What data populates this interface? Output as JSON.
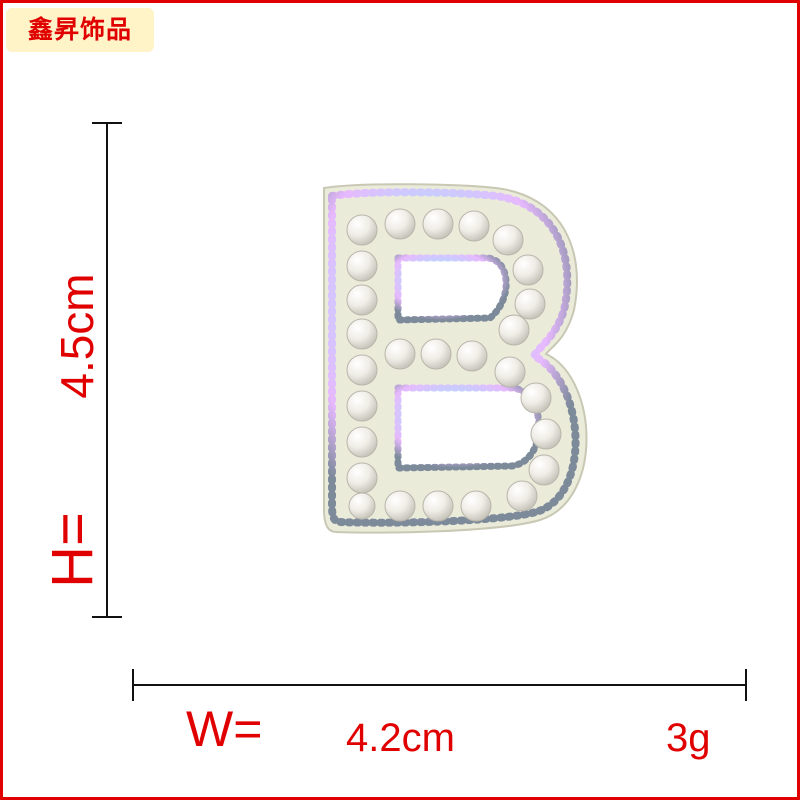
{
  "brand": {
    "name": "鑫昇饰品"
  },
  "dimensions": {
    "height_label": "H=",
    "height_value": "4.5cm",
    "width_label": "W=",
    "width_value": "4.2cm",
    "weight": "3g"
  },
  "product": {
    "letter": "B"
  },
  "colors": {
    "accent": "#e00000",
    "brand_bg": "#fff3c8",
    "felt": "#eeeedd",
    "pearl": "#f2f0ea"
  }
}
